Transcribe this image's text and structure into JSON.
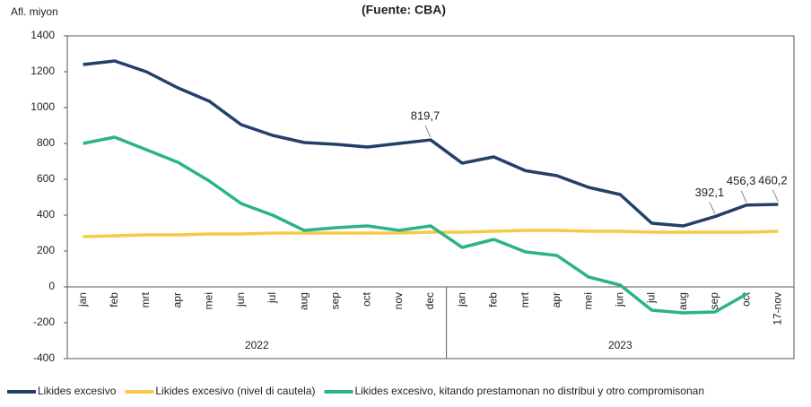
{
  "chart_data": {
    "type": "line",
    "title": "(Fuente: CBA)",
    "y_axis_label": "Afl. miyon",
    "categories": [
      "jan",
      "feb",
      "mrt",
      "apr",
      "mei",
      "jun",
      "jul",
      "aug",
      "sep",
      "oct",
      "nov",
      "dec",
      "jan",
      "feb",
      "mrt",
      "apr",
      "mei",
      "jun",
      "jul",
      "aug",
      "sep",
      "oct",
      "17-nov"
    ],
    "year_groups": [
      "2022",
      "2023"
    ],
    "series": [
      {
        "name": "Likides excesivo",
        "color": "#243f6b",
        "values": [
          1240,
          1260,
          1200,
          1110,
          1035,
          905,
          845,
          805,
          795,
          780,
          800,
          819.7,
          690,
          725,
          648,
          620,
          555,
          515,
          355,
          340,
          392.1,
          456.3,
          460.2
        ],
        "value_labels": [
          null,
          null,
          null,
          null,
          null,
          null,
          null,
          null,
          null,
          null,
          null,
          "819,7",
          null,
          null,
          null,
          null,
          null,
          null,
          null,
          null,
          "392,1",
          "456,3",
          "460,2"
        ]
      },
      {
        "name": "Likides excesivo (nivel di cautela)",
        "color": "#f7c948",
        "values": [
          280,
          285,
          290,
          290,
          295,
          295,
          300,
          300,
          300,
          300,
          300,
          305,
          305,
          310,
          315,
          315,
          310,
          310,
          305,
          305,
          305,
          305,
          310
        ]
      },
      {
        "name": "Likides excesivo, kitando prestamonan no distribui y otro compromisonan",
        "color": "#2bb38a",
        "values": [
          800,
          835,
          765,
          695,
          590,
          465,
          400,
          315,
          330,
          340,
          315,
          340,
          220,
          265,
          195,
          175,
          55,
          10,
          -130,
          -145,
          -140,
          -40,
          null
        ]
      }
    ],
    "ylim": [
      -400,
      1400
    ],
    "yticks": [
      -400,
      -200,
      0,
      200,
      400,
      600,
      800,
      1000,
      1200,
      1400
    ],
    "grid": false,
    "legend": "bottom"
  }
}
